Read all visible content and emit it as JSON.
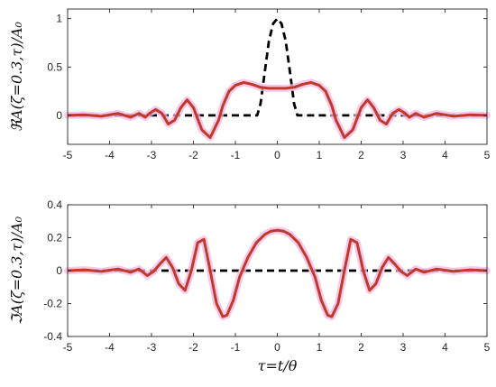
{
  "chart_data": [
    {
      "type": "line",
      "ylabel": "ℜA(ζ=0.3,τ)/A₀",
      "xlim": [
        -5,
        5
      ],
      "ylim": [
        -0.3,
        1.1
      ],
      "xticks": [
        "-5",
        "-4",
        "-3",
        "-2",
        "-1",
        "0",
        "1",
        "2",
        "3",
        "4",
        "5"
      ],
      "yticks": [
        "0",
        "0.5",
        "1"
      ],
      "ytick_values": [
        0,
        0.5,
        1
      ],
      "grid": false,
      "series": [
        {
          "style": "dashed",
          "color": "#000000",
          "x": [
            -5,
            -0.48,
            -0.4,
            -0.3,
            -0.2,
            -0.1,
            0,
            0.1,
            0.2,
            0.3,
            0.4,
            0.48,
            5
          ],
          "y": [
            0,
            0,
            0.12,
            0.45,
            0.77,
            0.95,
            1.0,
            0.95,
            0.77,
            0.45,
            0.12,
            0,
            0
          ]
        },
        {
          "style": "solid",
          "color": "#c0392b",
          "glow": "#f4b8e4",
          "x": [
            -5,
            -4.6,
            -4.2,
            -3.8,
            -3.5,
            -3.3,
            -3.15,
            -3.05,
            -2.9,
            -2.75,
            -2.6,
            -2.45,
            -2.3,
            -2.15,
            -2.0,
            -1.8,
            -1.6,
            -1.4,
            -1.3,
            -1.15,
            -1.0,
            -0.8,
            -0.6,
            -0.4,
            -0.2,
            0,
            0.2,
            0.4,
            0.6,
            0.8,
            1.0,
            1.15,
            1.3,
            1.4,
            1.6,
            1.8,
            2.0,
            2.15,
            2.3,
            2.45,
            2.6,
            2.75,
            2.9,
            3.05,
            3.15,
            3.3,
            3.5,
            3.8,
            4.2,
            4.6,
            5
          ],
          "y": [
            0.0,
            0.005,
            -0.01,
            0.02,
            -0.02,
            0.02,
            -0.02,
            0.02,
            0.06,
            0.02,
            -0.09,
            -0.05,
            0.08,
            0.16,
            0.08,
            -0.15,
            -0.23,
            -0.05,
            0.1,
            0.25,
            0.31,
            0.34,
            0.32,
            0.29,
            0.28,
            0.28,
            0.28,
            0.29,
            0.32,
            0.34,
            0.31,
            0.25,
            0.1,
            -0.05,
            -0.23,
            -0.15,
            0.08,
            0.16,
            0.08,
            -0.05,
            -0.09,
            0.02,
            0.06,
            0.02,
            -0.02,
            0.02,
            -0.02,
            0.02,
            -0.01,
            0.005,
            0.0
          ]
        }
      ]
    },
    {
      "type": "line",
      "ylabel": "ℑA(ζ=0.3,τ)/A₀",
      "xlabel": "τ=t/θ",
      "xlim": [
        -5,
        5
      ],
      "ylim": [
        -0.4,
        0.4
      ],
      "xticks": [
        "-5",
        "-4",
        "-3",
        "-2",
        "-1",
        "0",
        "1",
        "2",
        "3",
        "4",
        "5"
      ],
      "yticks": [
        "-0.4",
        "-0.2",
        "0",
        "0.2",
        "0.4"
      ],
      "ytick_values": [
        -0.4,
        -0.2,
        0,
        0.2,
        0.4
      ],
      "grid": false,
      "series": [
        {
          "style": "dashed",
          "color": "#000000",
          "x": [
            -5,
            5
          ],
          "y": [
            0,
            0
          ]
        },
        {
          "style": "solid",
          "color": "#c0392b",
          "glow": "#f4b8e4",
          "x": [
            -5,
            -4.6,
            -4.2,
            -3.8,
            -3.5,
            -3.3,
            -3.1,
            -2.95,
            -2.8,
            -2.65,
            -2.5,
            -2.35,
            -2.2,
            -2.05,
            -1.9,
            -1.75,
            -1.6,
            -1.45,
            -1.3,
            -1.2,
            -1.05,
            -0.9,
            -0.7,
            -0.5,
            -0.3,
            -0.15,
            0,
            0.15,
            0.3,
            0.5,
            0.7,
            0.9,
            1.05,
            1.2,
            1.3,
            1.45,
            1.6,
            1.75,
            1.9,
            2.05,
            2.2,
            2.35,
            2.5,
            2.65,
            2.8,
            2.95,
            3.1,
            3.3,
            3.5,
            3.8,
            4.2,
            4.6,
            5
          ],
          "y": [
            0.0,
            0.005,
            -0.005,
            0.01,
            -0.01,
            0.01,
            -0.03,
            -0.005,
            0.04,
            0.08,
            0.02,
            -0.08,
            -0.12,
            0.0,
            0.17,
            0.19,
            0.0,
            -0.2,
            -0.28,
            -0.27,
            -0.18,
            -0.04,
            0.08,
            0.17,
            0.22,
            0.24,
            0.245,
            0.24,
            0.22,
            0.17,
            0.08,
            -0.04,
            -0.18,
            -0.27,
            -0.28,
            -0.2,
            0.0,
            0.19,
            0.17,
            0.0,
            -0.12,
            -0.08,
            0.02,
            0.08,
            0.04,
            -0.005,
            -0.03,
            0.01,
            -0.01,
            0.01,
            -0.005,
            0.005,
            0.0
          ]
        }
      ]
    }
  ]
}
